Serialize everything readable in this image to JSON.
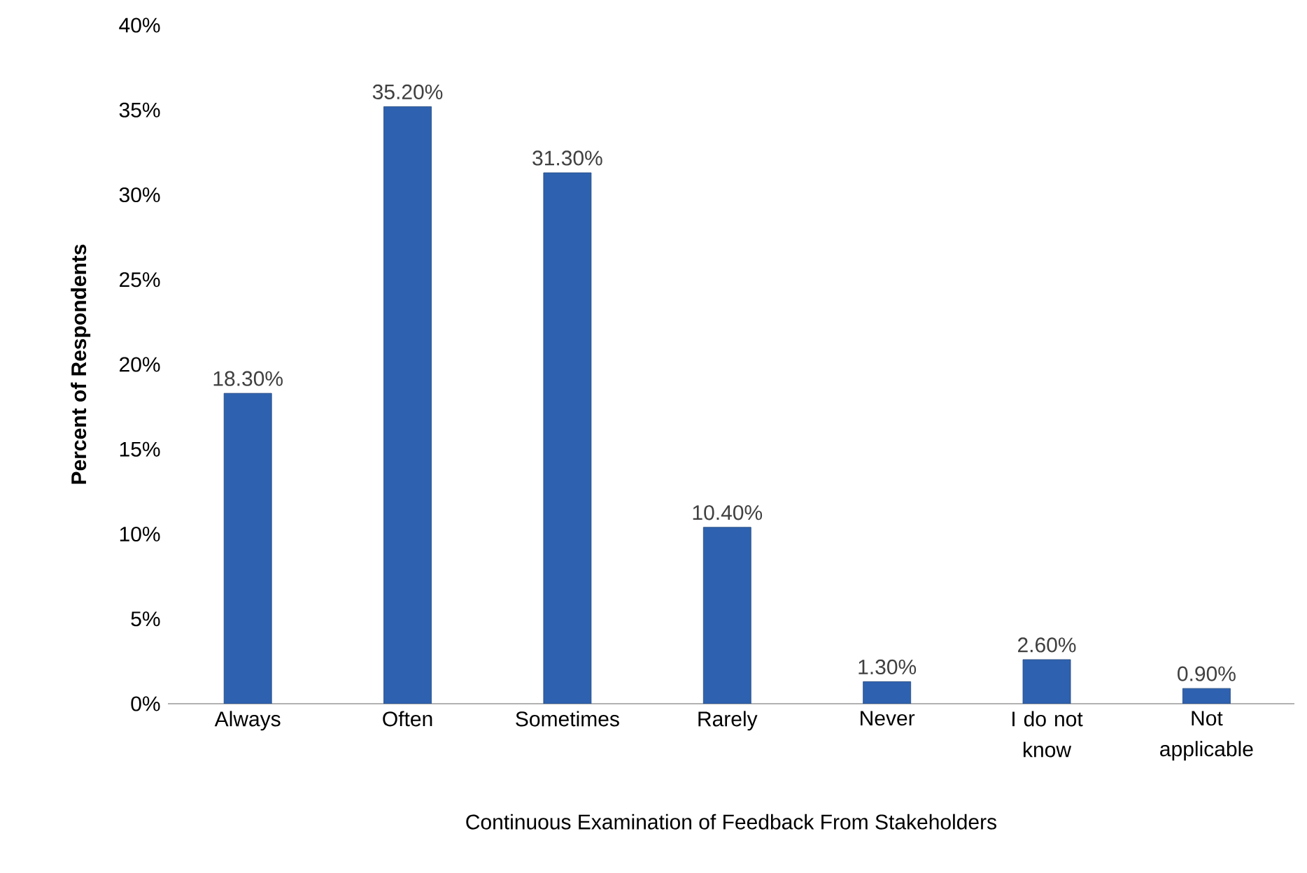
{
  "chart_data": {
    "type": "bar",
    "xlabel": "Continuous Examination of Feedback From Stakeholders",
    "ylabel": "Percent of Respondents",
    "categories": [
      "Always",
      "Often",
      "Sometimes",
      "Rarely",
      "Never",
      "I do not know",
      "Not applicable"
    ],
    "values": [
      18.3,
      35.2,
      31.3,
      10.4,
      1.3,
      2.6,
      0.9
    ],
    "value_labels": [
      "18.30%",
      "35.20%",
      "31.30%",
      "10.40%",
      "1.30%",
      "2.60%",
      "0.90%"
    ],
    "color": "#2e62b0",
    "ylim": [
      0,
      40
    ],
    "yticks": [
      {
        "value": 0,
        "label": "0%"
      },
      {
        "value": 5,
        "label": "5%"
      },
      {
        "value": 10,
        "label": "10%"
      },
      {
        "value": 15,
        "label": "15%"
      },
      {
        "value": 20,
        "label": "20%"
      },
      {
        "value": 25,
        "label": "25%"
      },
      {
        "value": 30,
        "label": "30%"
      },
      {
        "value": 35,
        "label": "35%"
      },
      {
        "value": 40,
        "label": "40%"
      }
    ],
    "grid": false
  }
}
